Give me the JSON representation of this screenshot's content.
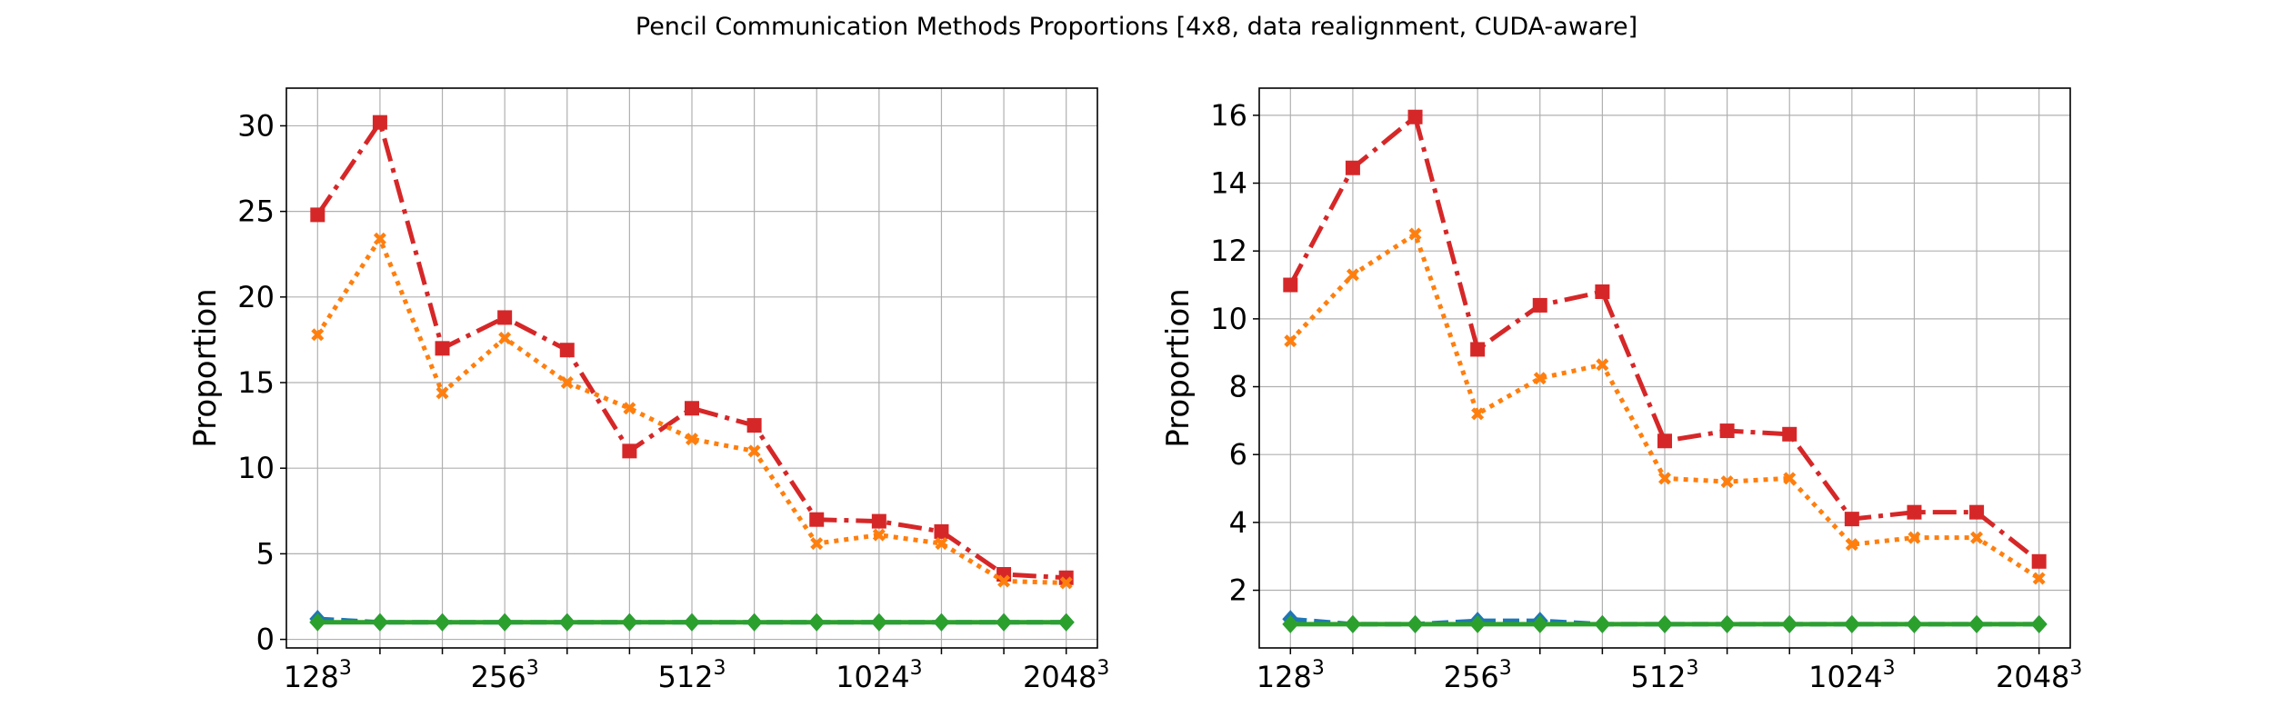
{
  "figure": {
    "title": "Pencil Communication Methods Proportions [4x8, data realignment, CUDA-aware]"
  },
  "colors": {
    "red": "#d62728",
    "orange": "#ff7f0e",
    "blue": "#1f77b4",
    "green": "#2ca02c",
    "grid": "#b0b0b0"
  },
  "chart_data": [
    {
      "type": "line",
      "ylabel": "Proportion",
      "ylim": [
        -0.5,
        32.2
      ],
      "yticks": [
        0,
        5,
        10,
        15,
        20,
        25,
        30
      ],
      "ytick_labels": [
        "0",
        "5",
        "10",
        "15",
        "20",
        "25",
        "30"
      ],
      "xlim": [
        -0.5,
        12.5
      ],
      "xticks": [
        0,
        3,
        6,
        9,
        12
      ],
      "xtick_labels": [
        {
          "base": "128",
          "exp": "3"
        },
        {
          "base": "256",
          "exp": "3"
        },
        {
          "base": "512",
          "exp": "3"
        },
        {
          "base": "1024",
          "exp": "3"
        },
        {
          "base": "2048",
          "exp": "3"
        }
      ],
      "x": [
        0,
        1,
        2,
        3,
        4,
        5,
        6,
        7,
        8,
        9,
        10,
        11,
        12
      ],
      "grid": true,
      "series": [
        {
          "color": "red",
          "marker": "square",
          "dash": "dashdot",
          "values": [
            24.8,
            30.2,
            17.0,
            18.8,
            16.9,
            11.0,
            13.5,
            12.5,
            7.0,
            6.9,
            6.3,
            3.8,
            3.6
          ]
        },
        {
          "color": "orange",
          "marker": "cross",
          "dash": "dotted",
          "values": [
            17.8,
            23.4,
            14.4,
            17.6,
            15.0,
            13.5,
            11.7,
            11.0,
            5.6,
            6.1,
            5.6,
            3.4,
            3.3
          ]
        },
        {
          "color": "blue",
          "marker": "diamond",
          "dash": "dashed",
          "values": [
            1.2,
            1.0,
            1.0,
            1.0,
            1.0,
            1.0,
            1.0,
            1.0,
            1.0,
            1.0,
            1.0,
            1.0,
            1.0
          ]
        },
        {
          "color": "green",
          "marker": "diamond",
          "dash": "solid",
          "values": [
            1.0,
            1.0,
            1.0,
            1.0,
            1.0,
            1.0,
            1.0,
            1.0,
            1.0,
            1.0,
            1.0,
            1.0,
            1.0
          ]
        }
      ]
    },
    {
      "type": "line",
      "ylabel": "Proportion",
      "ylim": [
        0.3,
        16.8
      ],
      "yticks": [
        2,
        4,
        6,
        8,
        10,
        12,
        14,
        16
      ],
      "ytick_labels": [
        "2",
        "4",
        "6",
        "8",
        "10",
        "12",
        "14",
        "16"
      ],
      "xlim": [
        -0.5,
        12.5
      ],
      "xticks": [
        0,
        3,
        6,
        9,
        12
      ],
      "xtick_labels": [
        {
          "base": "128",
          "exp": "3"
        },
        {
          "base": "256",
          "exp": "3"
        },
        {
          "base": "512",
          "exp": "3"
        },
        {
          "base": "1024",
          "exp": "3"
        },
        {
          "base": "2048",
          "exp": "3"
        }
      ],
      "x": [
        0,
        1,
        2,
        3,
        4,
        5,
        6,
        7,
        8,
        9,
        10,
        11,
        12
      ],
      "grid": true,
      "series": [
        {
          "color": "red",
          "marker": "square",
          "dash": "dashdot",
          "values": [
            11.0,
            14.45,
            15.95,
            9.1,
            10.4,
            10.8,
            6.4,
            6.7,
            6.6,
            4.1,
            4.3,
            4.3,
            2.85
          ]
        },
        {
          "color": "orange",
          "marker": "cross",
          "dash": "dotted",
          "values": [
            9.35,
            11.3,
            12.5,
            7.2,
            8.25,
            8.65,
            5.3,
            5.2,
            5.3,
            3.35,
            3.55,
            3.55,
            2.35
          ]
        },
        {
          "color": "blue",
          "marker": "diamond",
          "dash": "dashed",
          "values": [
            1.15,
            1.0,
            1.0,
            1.1,
            1.1,
            1.0,
            1.0,
            1.0,
            1.0,
            1.0,
            1.0,
            1.0,
            1.0
          ]
        },
        {
          "color": "green",
          "marker": "diamond",
          "dash": "solid",
          "values": [
            1.0,
            1.0,
            1.0,
            1.0,
            1.0,
            1.0,
            1.0,
            1.0,
            1.0,
            1.0,
            1.0,
            1.0,
            1.0
          ]
        }
      ]
    }
  ]
}
